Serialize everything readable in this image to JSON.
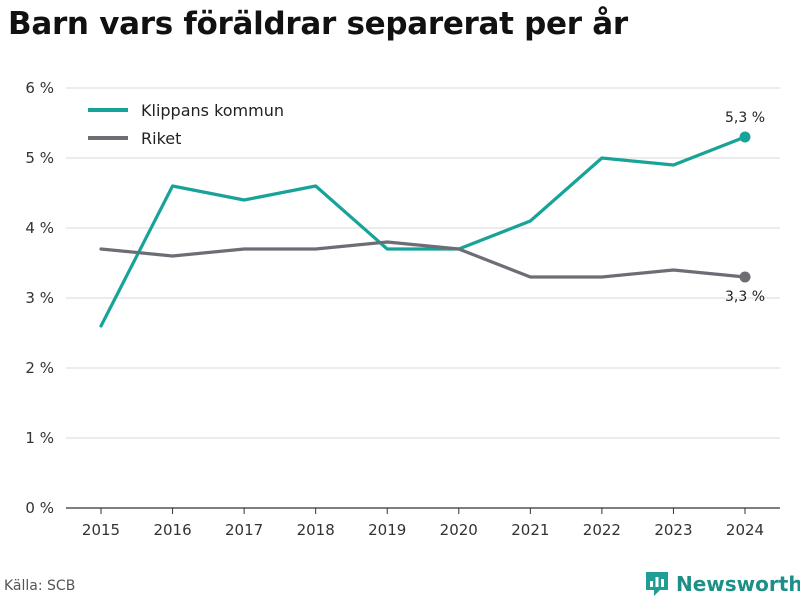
{
  "title": "Barn vars föräldrar separerat per år",
  "source": "Källa: SCB",
  "brand": {
    "name": "Newsworthy",
    "color": "#1e9e94",
    "icon": "bar-chart-logo-icon"
  },
  "chart_data": {
    "type": "line",
    "title": "Barn vars föräldrar separerat per år",
    "xlabel": "",
    "ylabel": "",
    "ylim": [
      0,
      6
    ],
    "grid": true,
    "legend": "top-left",
    "x": [
      2015,
      2016,
      2017,
      2018,
      2019,
      2020,
      2021,
      2022,
      2023,
      2024
    ],
    "x_tick_labels": [
      "2015",
      "2016",
      "2017",
      "2018",
      "2019",
      "2020",
      "2021",
      "2022",
      "2023",
      "2024"
    ],
    "y_ticks": [
      0,
      1,
      2,
      3,
      4,
      5,
      6
    ],
    "y_tick_labels": [
      "0 %",
      "1 %",
      "2 %",
      "3 %",
      "4 %",
      "5 %",
      "6 %"
    ],
    "series": [
      {
        "name": "Klippans kommun",
        "color": "#18a399",
        "values": [
          2.6,
          4.6,
          4.4,
          4.6,
          3.7,
          3.7,
          4.1,
          5.0,
          4.9,
          5.3
        ],
        "end_label": "5,3 %",
        "end_label_position": "above"
      },
      {
        "name": "Riket",
        "color": "#6d6d75",
        "values": [
          3.7,
          3.6,
          3.7,
          3.7,
          3.8,
          3.7,
          3.3,
          3.3,
          3.4,
          3.3
        ],
        "end_label": "3,3 %",
        "end_label_position": "below"
      }
    ]
  }
}
